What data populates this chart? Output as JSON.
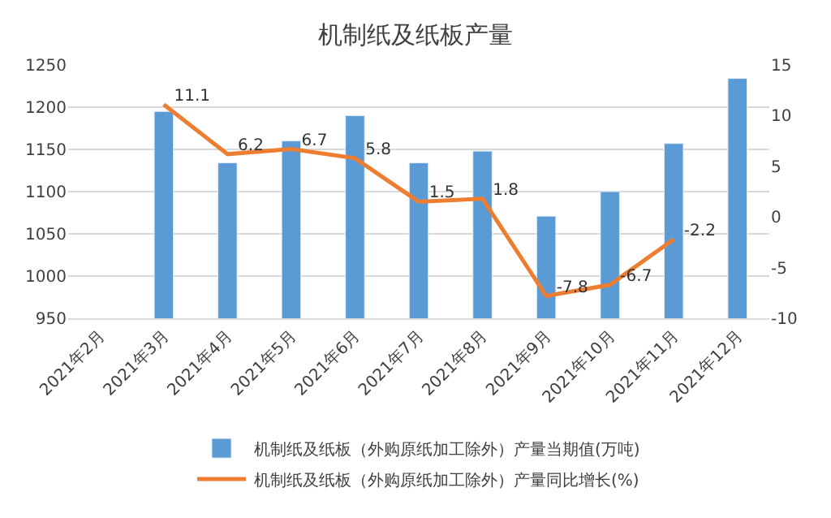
{
  "chart_data": {
    "type": "bar",
    "title": "机制纸及纸板产量",
    "categories": [
      "2021年2月",
      "2021年3月",
      "2021年4月",
      "2021年5月",
      "2021年6月",
      "2021年7月",
      "2021年8月",
      "2021年9月",
      "2021年10月",
      "2021年11月",
      "2021年12月"
    ],
    "series": [
      {
        "name": "机制纸及纸板（外购原纸加工除外）产量当期值(万吨)",
        "color": "#5b9bd5",
        "values": [
          null,
          1195,
          1134,
          1160,
          1190,
          1134,
          1148,
          1071,
          1100,
          1157,
          1234
        ]
      },
      {
        "name": "机制纸及纸板（外购原纸加工除外）产量同比增长(%)",
        "type": "line",
        "axis": "y2",
        "color": "#ed7d31",
        "values": [
          null,
          11.1,
          6.2,
          6.7,
          5.8,
          1.5,
          1.8,
          -7.8,
          -6.7,
          -2.2,
          null
        ],
        "value_labels": [
          null,
          "11.1",
          "6.2",
          "6.7",
          "5.8",
          "1.5",
          "1.8",
          "-7.8",
          "-6.7",
          "-2.2",
          null
        ]
      }
    ],
    "ylim": [
      950,
      1250
    ],
    "yticks": [
      950,
      1000,
      1050,
      1100,
      1150,
      1200,
      1250
    ],
    "y2lim": [
      -10,
      15
    ],
    "y2ticks": [
      -10,
      -5,
      0,
      5,
      10,
      15
    ],
    "grid": "y",
    "legend": "bottom"
  }
}
